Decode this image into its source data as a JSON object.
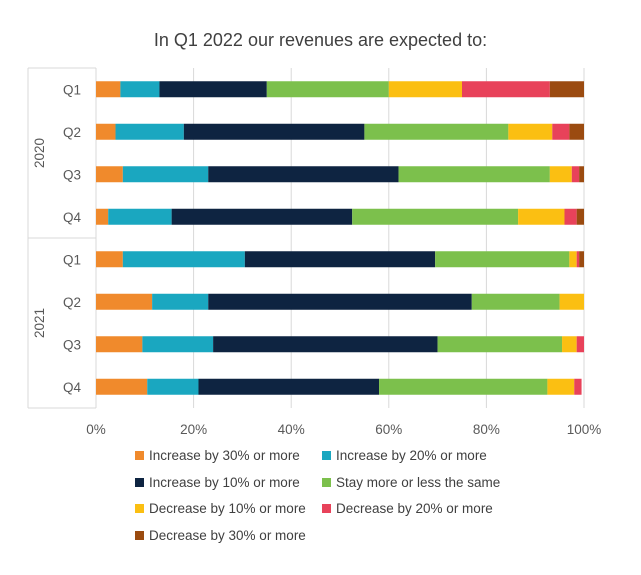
{
  "chart_data": {
    "type": "bar",
    "orientation": "horizontal",
    "stacked": "100%",
    "title": "In Q1 2022 our revenues are expected to:",
    "groups": [
      {
        "label": "2020",
        "categories": [
          "Q1",
          "Q2",
          "Q3",
          "Q4"
        ]
      },
      {
        "label": "2021",
        "categories": [
          "Q1",
          "Q2",
          "Q3",
          "Q4"
        ]
      }
    ],
    "xlim": [
      0,
      100
    ],
    "x_ticks": [
      "0%",
      "20%",
      "40%",
      "60%",
      "80%",
      "100%"
    ],
    "grid": "vertical",
    "legend_position": "bottom",
    "series": [
      {
        "name": "Increase by 30% or more",
        "color": "#f08a2c",
        "values": [
          5,
          4,
          5.5,
          2.5,
          5.5,
          11.5,
          9.5,
          10.5
        ]
      },
      {
        "name": "Increase by 20% or more",
        "color": "#1aa7c0",
        "values": [
          8,
          14,
          17.5,
          13,
          25,
          11.5,
          14.5,
          10.5
        ]
      },
      {
        "name": "Increase by 10% or more",
        "color": "#0e2441",
        "values": [
          22,
          37,
          39,
          37,
          39,
          54,
          46,
          37
        ]
      },
      {
        "name": "Stay more or less the same",
        "color": "#7cc04c",
        "values": [
          25,
          29.5,
          31,
          34,
          27.5,
          18,
          25.5,
          34.5
        ]
      },
      {
        "name": "Decrease by 10% or more",
        "color": "#fbbf12",
        "values": [
          15,
          9,
          4.5,
          9.5,
          1.5,
          5,
          3,
          5.5
        ]
      },
      {
        "name": "Decrease by 20% or more",
        "color": "#e8425a",
        "values": [
          18,
          3.5,
          1.5,
          2.5,
          0.5,
          0,
          1.5,
          1.5
        ]
      },
      {
        "name": "Decrease by 30% or more",
        "color": "#9b4b10",
        "values": [
          7,
          3,
          1,
          1.5,
          1,
          0,
          0,
          0
        ]
      }
    ]
  }
}
